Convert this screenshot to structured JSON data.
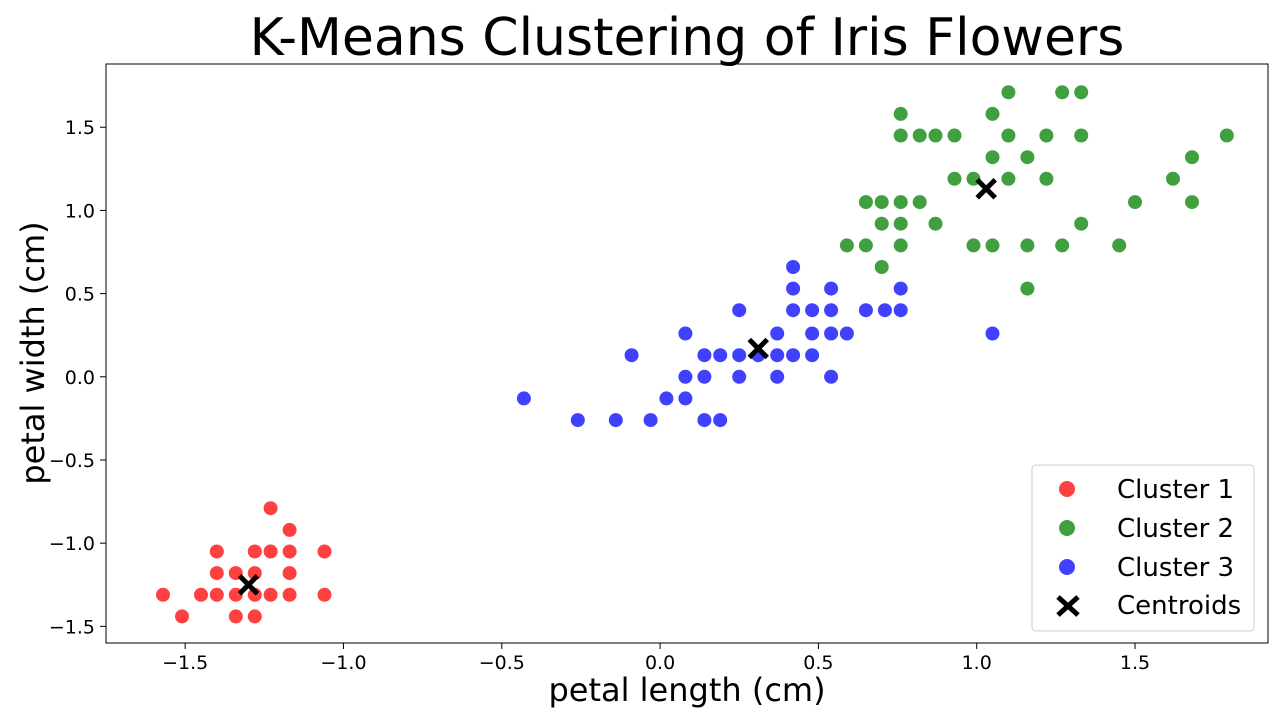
{
  "chart_data": {
    "type": "scatter",
    "title": "K-Means Clustering of Iris Flowers",
    "xlabel": "petal length (cm)",
    "ylabel": "petal width (cm)",
    "xlim": [
      -1.75,
      1.92
    ],
    "ylim": [
      -1.6,
      1.88
    ],
    "xticks": [
      -1.5,
      -1.0,
      -0.5,
      0.0,
      0.5,
      1.0,
      1.5
    ],
    "yticks": [
      -1.5,
      -1.0,
      -0.5,
      0.0,
      0.5,
      1.0,
      1.5
    ],
    "xtick_labels": [
      "−1.5",
      "−1.0",
      "−0.5",
      "0.0",
      "0.5",
      "1.0",
      "1.5"
    ],
    "ytick_labels": [
      "−1.5",
      "−1.0",
      "−0.5",
      "0.0",
      "0.5",
      "1.0",
      "1.5"
    ],
    "grid": false,
    "legend_position": "bottom-right",
    "series": [
      {
        "name": "Cluster 1",
        "color": "#ff0000",
        "points": [
          [
            -1.57,
            -1.31
          ],
          [
            -1.51,
            -1.44
          ],
          [
            -1.45,
            -1.31
          ],
          [
            -1.4,
            -1.05
          ],
          [
            -1.4,
            -1.18
          ],
          [
            -1.4,
            -1.31
          ],
          [
            -1.34,
            -1.18
          ],
          [
            -1.34,
            -1.31
          ],
          [
            -1.34,
            -1.44
          ],
          [
            -1.28,
            -1.05
          ],
          [
            -1.28,
            -1.18
          ],
          [
            -1.28,
            -1.31
          ],
          [
            -1.28,
            -1.44
          ],
          [
            -1.23,
            -0.79
          ],
          [
            -1.23,
            -1.05
          ],
          [
            -1.23,
            -1.31
          ],
          [
            -1.17,
            -0.92
          ],
          [
            -1.17,
            -1.05
          ],
          [
            -1.17,
            -1.18
          ],
          [
            -1.17,
            -1.31
          ],
          [
            -1.06,
            -1.05
          ],
          [
            -1.06,
            -1.31
          ]
        ]
      },
      {
        "name": "Cluster 2",
        "color": "#008000",
        "points": [
          [
            0.59,
            0.79
          ],
          [
            0.65,
            0.79
          ],
          [
            0.65,
            1.05
          ],
          [
            0.7,
            0.66
          ],
          [
            0.7,
            0.92
          ],
          [
            0.7,
            1.05
          ],
          [
            0.76,
            0.79
          ],
          [
            0.76,
            0.92
          ],
          [
            0.76,
            1.05
          ],
          [
            0.76,
            1.45
          ],
          [
            0.76,
            1.58
          ],
          [
            0.82,
            1.05
          ],
          [
            0.82,
            1.45
          ],
          [
            0.87,
            0.92
          ],
          [
            0.87,
            1.45
          ],
          [
            0.93,
            1.19
          ],
          [
            0.93,
            1.45
          ],
          [
            0.99,
            0.79
          ],
          [
            0.99,
            1.19
          ],
          [
            1.05,
            0.79
          ],
          [
            1.05,
            1.32
          ],
          [
            1.05,
            1.58
          ],
          [
            1.1,
            1.19
          ],
          [
            1.1,
            1.45
          ],
          [
            1.1,
            1.71
          ],
          [
            1.16,
            0.53
          ],
          [
            1.16,
            0.79
          ],
          [
            1.16,
            1.32
          ],
          [
            1.22,
            1.19
          ],
          [
            1.22,
            1.45
          ],
          [
            1.27,
            0.79
          ],
          [
            1.27,
            1.71
          ],
          [
            1.33,
            0.92
          ],
          [
            1.33,
            1.45
          ],
          [
            1.33,
            1.71
          ],
          [
            1.45,
            0.79
          ],
          [
            1.5,
            1.05
          ],
          [
            1.62,
            1.19
          ],
          [
            1.68,
            1.05
          ],
          [
            1.68,
            1.32
          ],
          [
            1.79,
            1.45
          ]
        ]
      },
      {
        "name": "Cluster 3",
        "color": "#0000ff",
        "points": [
          [
            -0.43,
            -0.13
          ],
          [
            -0.26,
            -0.26
          ],
          [
            -0.14,
            -0.26
          ],
          [
            -0.09,
            0.13
          ],
          [
            -0.03,
            -0.26
          ],
          [
            0.02,
            -0.13
          ],
          [
            0.08,
            -0.13
          ],
          [
            0.08,
            0.0
          ],
          [
            0.08,
            0.26
          ],
          [
            0.14,
            -0.26
          ],
          [
            0.14,
            0.0
          ],
          [
            0.14,
            0.13
          ],
          [
            0.19,
            -0.26
          ],
          [
            0.19,
            0.13
          ],
          [
            0.25,
            0.0
          ],
          [
            0.25,
            0.13
          ],
          [
            0.25,
            0.4
          ],
          [
            0.31,
            0.13
          ],
          [
            0.37,
            0.0
          ],
          [
            0.37,
            0.13
          ],
          [
            0.37,
            0.26
          ],
          [
            0.42,
            0.13
          ],
          [
            0.42,
            0.4
          ],
          [
            0.42,
            0.53
          ],
          [
            0.42,
            0.66
          ],
          [
            0.48,
            0.13
          ],
          [
            0.48,
            0.26
          ],
          [
            0.48,
            0.4
          ],
          [
            0.54,
            0.0
          ],
          [
            0.54,
            0.26
          ],
          [
            0.54,
            0.4
          ],
          [
            0.54,
            0.53
          ],
          [
            0.59,
            0.26
          ],
          [
            0.65,
            0.4
          ],
          [
            0.71,
            0.4
          ],
          [
            0.76,
            0.4
          ],
          [
            0.76,
            0.53
          ],
          [
            1.05,
            0.26
          ]
        ]
      }
    ],
    "centroids": {
      "name": "Centroids",
      "color": "#000000",
      "points": [
        [
          -1.3,
          -1.25
        ],
        [
          0.31,
          0.17
        ],
        [
          1.03,
          1.13
        ]
      ]
    }
  }
}
